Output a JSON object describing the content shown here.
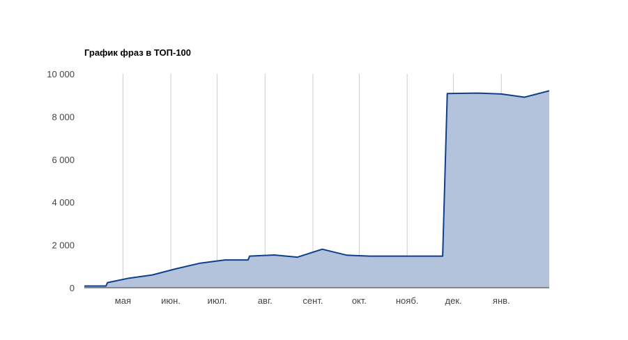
{
  "chart_data": {
    "type": "area",
    "title": "График фраз в ТОП-100",
    "xlabel": "",
    "ylabel": "",
    "ylim": [
      0,
      10000
    ],
    "y_ticks": [
      0,
      2000,
      4000,
      6000,
      8000,
      10000
    ],
    "y_tick_labels": [
      "0",
      "2 000",
      "4 000",
      "6 000",
      "8 000",
      "10 000"
    ],
    "x_range": [
      "2015-04-06",
      "2016-02-01"
    ],
    "x_ticks": [
      {
        "date": "2015-05-01",
        "label": "мая"
      },
      {
        "date": "2015-06-01",
        "label": "июн."
      },
      {
        "date": "2015-07-01",
        "label": "июл."
      },
      {
        "date": "2015-08-01",
        "label": "авг."
      },
      {
        "date": "2015-09-01",
        "label": "сент."
      },
      {
        "date": "2015-10-01",
        "label": "окт."
      },
      {
        "date": "2015-11-01",
        "label": "нояб."
      },
      {
        "date": "2015-12-01",
        "label": "дек."
      },
      {
        "date": "2016-01-01",
        "label": "янв."
      }
    ],
    "grid": true,
    "grid_axis": "x",
    "legend": "none",
    "colors": {
      "line": "#0d3f8a",
      "fill": "#b3c3dc",
      "grid": "#cccccc",
      "baseline": "#333333"
    },
    "series": [
      {
        "x": [
          "2015-04-06",
          "2015-04-20",
          "2015-04-21",
          "2015-05-05",
          "2015-05-20",
          "2015-06-05",
          "2015-06-20",
          "2015-07-06",
          "2015-07-21",
          "2015-07-22",
          "2015-08-07",
          "2015-08-22",
          "2015-09-07",
          "2015-09-23",
          "2015-10-08",
          "2015-10-24",
          "2015-11-08",
          "2015-11-24",
          "2015-11-27",
          "2015-12-17",
          "2016-01-01",
          "2016-01-16",
          "2016-02-01"
        ],
        "y": [
          80,
          80,
          240,
          450,
          600,
          900,
          1150,
          1300,
          1300,
          1480,
          1530,
          1430,
          1800,
          1520,
          1480,
          1480,
          1480,
          1480,
          9080,
          9100,
          9060,
          8910,
          9210
        ]
      }
    ]
  }
}
